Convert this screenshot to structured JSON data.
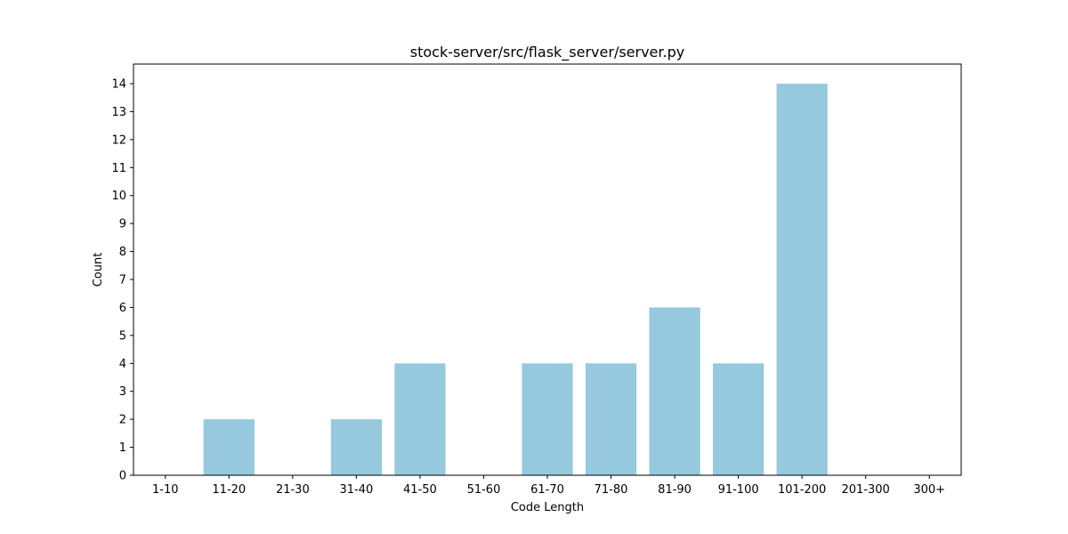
{
  "chart_data": {
    "type": "bar",
    "title": "stock-server/src/flask_server/server.py",
    "xlabel": "Code Length",
    "ylabel": "Count",
    "categories": [
      "1-10",
      "11-20",
      "21-30",
      "31-40",
      "41-50",
      "51-60",
      "61-70",
      "71-80",
      "81-90",
      "91-100",
      "101-200",
      "201-300",
      "300+"
    ],
    "values": [
      0,
      2,
      0,
      2,
      4,
      0,
      4,
      4,
      6,
      4,
      14,
      0,
      0
    ],
    "ylim": [
      0,
      14.7
    ],
    "yticks": [
      0,
      1,
      2,
      3,
      4,
      5,
      6,
      7,
      8,
      9,
      10,
      11,
      12,
      13,
      14
    ],
    "bar_color": "#96c9dd",
    "grid": false,
    "legend": "none"
  }
}
